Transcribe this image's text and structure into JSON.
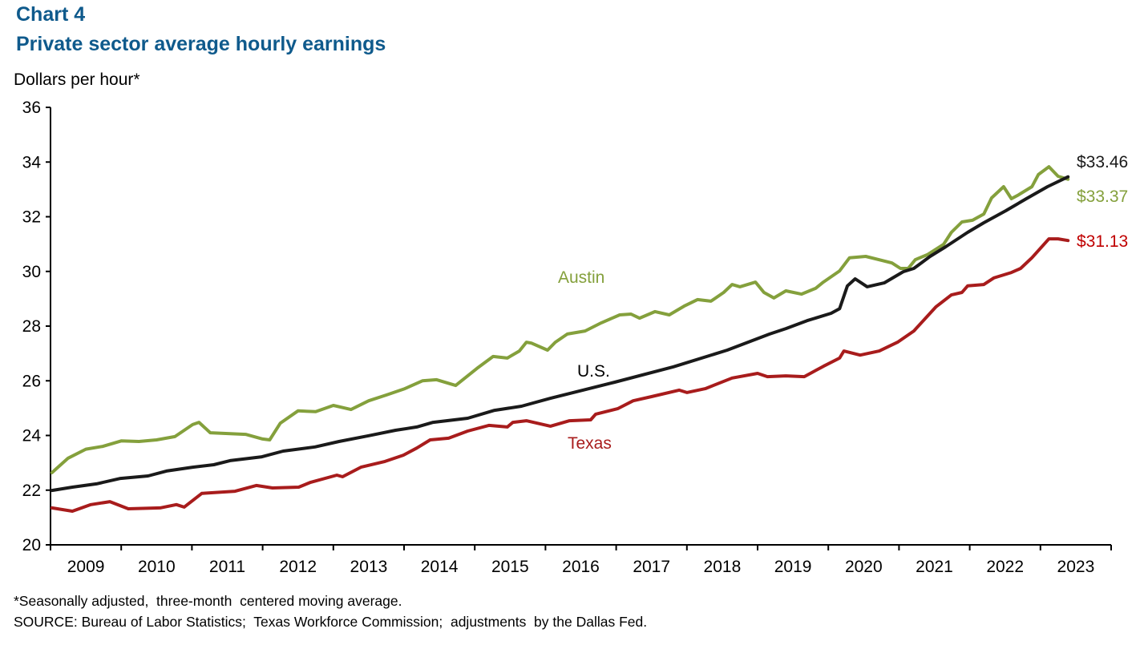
{
  "chart_data": {
    "type": "line",
    "title": "Chart 4",
    "subtitle": "Private sector average hourly earnings",
    "ylabel": "Dollars per hour*",
    "xlabel": "",
    "ylim": [
      20,
      36
    ],
    "xlim": [
      2009,
      2024
    ],
    "yticks": [
      "20",
      "22",
      "24",
      "26",
      "28",
      "30",
      "32",
      "34",
      "36"
    ],
    "xtick_labels": [
      "2009",
      "2010",
      "2011",
      "2012",
      "2013",
      "2014",
      "2015",
      "2016",
      "2017",
      "2018",
      "2019",
      "2020",
      "2021",
      "2022",
      "2023"
    ],
    "grid": false,
    "series": [
      {
        "name": "Austin",
        "color": "#84a03c",
        "end_label": "$33.37",
        "label_color": "#84a03c",
        "points": [
          [
            2009.02,
            22.64
          ],
          [
            2009.25,
            23.17
          ],
          [
            2009.5,
            23.5
          ],
          [
            2009.74,
            23.6
          ],
          [
            2010.0,
            23.8
          ],
          [
            2010.25,
            23.78
          ],
          [
            2010.5,
            23.84
          ],
          [
            2010.76,
            23.96
          ],
          [
            2011.01,
            24.4
          ],
          [
            2011.1,
            24.48
          ],
          [
            2011.26,
            24.1
          ],
          [
            2011.51,
            24.07
          ],
          [
            2011.76,
            24.04
          ],
          [
            2012.0,
            23.87
          ],
          [
            2012.1,
            23.84
          ],
          [
            2012.25,
            24.45
          ],
          [
            2012.5,
            24.9
          ],
          [
            2012.75,
            24.87
          ],
          [
            2013.0,
            25.1
          ],
          [
            2013.25,
            24.95
          ],
          [
            2013.5,
            25.27
          ],
          [
            2013.75,
            25.48
          ],
          [
            2014.01,
            25.71
          ],
          [
            2014.26,
            26.0
          ],
          [
            2014.46,
            26.04
          ],
          [
            2014.73,
            25.83
          ],
          [
            2015.03,
            26.45
          ],
          [
            2015.26,
            26.89
          ],
          [
            2015.46,
            26.83
          ],
          [
            2015.63,
            27.09
          ],
          [
            2015.73,
            27.41
          ],
          [
            2015.8,
            27.38
          ],
          [
            2016.03,
            27.12
          ],
          [
            2016.14,
            27.41
          ],
          [
            2016.31,
            27.71
          ],
          [
            2016.56,
            27.82
          ],
          [
            2016.79,
            28.12
          ],
          [
            2017.05,
            28.41
          ],
          [
            2017.21,
            28.44
          ],
          [
            2017.33,
            28.29
          ],
          [
            2017.55,
            28.53
          ],
          [
            2017.75,
            28.41
          ],
          [
            2017.96,
            28.73
          ],
          [
            2018.15,
            28.97
          ],
          [
            2018.34,
            28.91
          ],
          [
            2018.52,
            29.23
          ],
          [
            2018.64,
            29.52
          ],
          [
            2018.75,
            29.44
          ],
          [
            2018.97,
            29.61
          ],
          [
            2019.09,
            29.23
          ],
          [
            2019.23,
            29.03
          ],
          [
            2019.4,
            29.29
          ],
          [
            2019.62,
            29.17
          ],
          [
            2019.82,
            29.38
          ],
          [
            2019.93,
            29.61
          ],
          [
            2020.16,
            30.02
          ],
          [
            2020.3,
            30.5
          ],
          [
            2020.53,
            30.55
          ],
          [
            2020.76,
            30.4
          ],
          [
            2020.9,
            30.31
          ],
          [
            2021.02,
            30.11
          ],
          [
            2021.13,
            30.11
          ],
          [
            2021.23,
            30.43
          ],
          [
            2021.4,
            30.61
          ],
          [
            2021.63,
            30.99
          ],
          [
            2021.74,
            31.43
          ],
          [
            2021.89,
            31.81
          ],
          [
            2022.04,
            31.87
          ],
          [
            2022.2,
            32.1
          ],
          [
            2022.31,
            32.69
          ],
          [
            2022.48,
            33.1
          ],
          [
            2022.59,
            32.66
          ],
          [
            2022.69,
            32.8
          ],
          [
            2022.88,
            33.1
          ],
          [
            2022.97,
            33.54
          ],
          [
            2023.12,
            33.83
          ],
          [
            2023.25,
            33.48
          ],
          [
            2023.39,
            33.37
          ]
        ]
      },
      {
        "name": "U.S.",
        "color": "#1a1a1a",
        "end_label": "$33.46",
        "label_color": "#1a1a1a",
        "points": [
          [
            2009.02,
            21.99
          ],
          [
            2009.31,
            22.11
          ],
          [
            2009.65,
            22.23
          ],
          [
            2009.99,
            22.43
          ],
          [
            2010.38,
            22.52
          ],
          [
            2010.64,
            22.7
          ],
          [
            2011.01,
            22.84
          ],
          [
            2011.31,
            22.93
          ],
          [
            2011.54,
            23.08
          ],
          [
            2011.99,
            23.22
          ],
          [
            2012.29,
            23.43
          ],
          [
            2012.74,
            23.58
          ],
          [
            2013.08,
            23.78
          ],
          [
            2013.5,
            23.99
          ],
          [
            2013.88,
            24.19
          ],
          [
            2014.18,
            24.31
          ],
          [
            2014.41,
            24.48
          ],
          [
            2014.9,
            24.63
          ],
          [
            2015.28,
            24.92
          ],
          [
            2015.66,
            25.07
          ],
          [
            2016.07,
            25.36
          ],
          [
            2016.53,
            25.66
          ],
          [
            2016.98,
            25.95
          ],
          [
            2017.81,
            26.51
          ],
          [
            2018.57,
            27.12
          ],
          [
            2019.17,
            27.71
          ],
          [
            2019.4,
            27.91
          ],
          [
            2019.7,
            28.2
          ],
          [
            2020.04,
            28.47
          ],
          [
            2020.16,
            28.64
          ],
          [
            2020.27,
            29.47
          ],
          [
            2020.38,
            29.73
          ],
          [
            2020.55,
            29.44
          ],
          [
            2020.79,
            29.58
          ],
          [
            2021.06,
            29.99
          ],
          [
            2021.21,
            30.11
          ],
          [
            2021.44,
            30.55
          ],
          [
            2021.66,
            30.9
          ],
          [
            2021.97,
            31.43
          ],
          [
            2022.2,
            31.78
          ],
          [
            2022.51,
            32.22
          ],
          [
            2022.8,
            32.66
          ],
          [
            2023.1,
            33.1
          ],
          [
            2023.39,
            33.46
          ]
        ]
      },
      {
        "name": "Texas",
        "color": "#a81c1c",
        "end_label": "$31.13",
        "label_color": "#c00000",
        "points": [
          [
            2009.02,
            21.35
          ],
          [
            2009.31,
            21.23
          ],
          [
            2009.57,
            21.47
          ],
          [
            2009.84,
            21.58
          ],
          [
            2010.1,
            21.32
          ],
          [
            2010.55,
            21.35
          ],
          [
            2010.78,
            21.47
          ],
          [
            2010.89,
            21.38
          ],
          [
            2011.14,
            21.88
          ],
          [
            2011.61,
            21.96
          ],
          [
            2011.91,
            22.17
          ],
          [
            2012.14,
            22.08
          ],
          [
            2012.51,
            22.11
          ],
          [
            2012.68,
            22.29
          ],
          [
            2013.05,
            22.55
          ],
          [
            2013.13,
            22.49
          ],
          [
            2013.39,
            22.84
          ],
          [
            2013.73,
            23.05
          ],
          [
            2013.99,
            23.28
          ],
          [
            2014.18,
            23.54
          ],
          [
            2014.37,
            23.84
          ],
          [
            2014.63,
            23.9
          ],
          [
            2014.9,
            24.16
          ],
          [
            2015.2,
            24.37
          ],
          [
            2015.46,
            24.31
          ],
          [
            2015.54,
            24.48
          ],
          [
            2015.73,
            24.54
          ],
          [
            2016.07,
            24.34
          ],
          [
            2016.34,
            24.54
          ],
          [
            2016.64,
            24.57
          ],
          [
            2016.71,
            24.78
          ],
          [
            2017.02,
            24.98
          ],
          [
            2017.24,
            25.27
          ],
          [
            2017.5,
            25.42
          ],
          [
            2017.89,
            25.66
          ],
          [
            2018.0,
            25.57
          ],
          [
            2018.26,
            25.71
          ],
          [
            2018.64,
            26.1
          ],
          [
            2019.0,
            26.27
          ],
          [
            2019.14,
            26.15
          ],
          [
            2019.4,
            26.18
          ],
          [
            2019.66,
            26.15
          ],
          [
            2019.93,
            26.53
          ],
          [
            2020.16,
            26.83
          ],
          [
            2020.22,
            27.09
          ],
          [
            2020.45,
            26.94
          ],
          [
            2020.72,
            27.09
          ],
          [
            2020.98,
            27.41
          ],
          [
            2021.21,
            27.82
          ],
          [
            2021.52,
            28.7
          ],
          [
            2021.74,
            29.14
          ],
          [
            2021.89,
            29.23
          ],
          [
            2021.97,
            29.47
          ],
          [
            2022.2,
            29.52
          ],
          [
            2022.34,
            29.76
          ],
          [
            2022.59,
            29.96
          ],
          [
            2022.72,
            30.11
          ],
          [
            2022.88,
            30.5
          ],
          [
            2023.12,
            31.19
          ],
          [
            2023.25,
            31.19
          ],
          [
            2023.39,
            31.13
          ]
        ]
      }
    ],
    "annotations": {
      "austin": "Austin",
      "us": "U.S.",
      "texas": "Texas"
    },
    "footnotes": [
      "*Seasonally adjusted,  three-month  centered moving average.",
      "SOURCE: Bureau of Labor Statistics;  Texas Workforce Commission;  adjustments  by the Dallas Fed."
    ]
  }
}
